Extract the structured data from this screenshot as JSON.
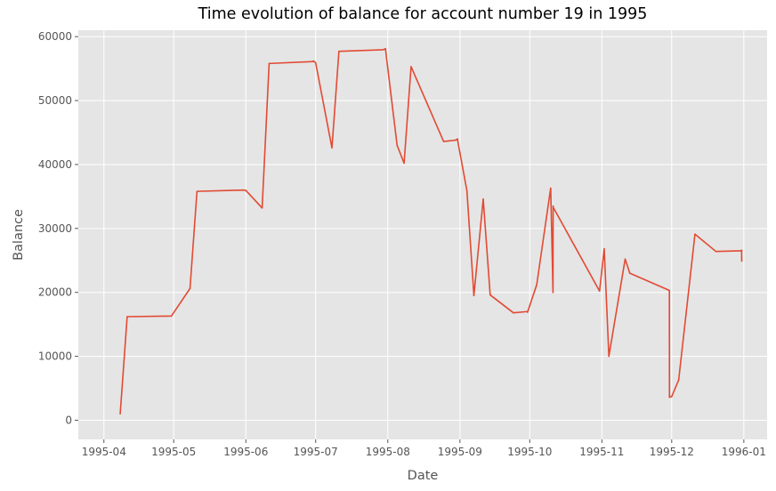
{
  "chart_data": {
    "type": "line",
    "title": "Time evolution of balance for account number 19 in 1995",
    "xlabel": "Date",
    "ylabel": "Balance",
    "xlim": [
      "1995-03-21",
      "1996-01-11"
    ],
    "ylim": [
      -3000,
      61000
    ],
    "x_ticks": [
      "1995-04",
      "1995-05",
      "1995-06",
      "1995-07",
      "1995-08",
      "1995-09",
      "1995-10",
      "1995-11",
      "1995-12",
      "1996-01"
    ],
    "y_ticks": [
      0,
      10000,
      20000,
      30000,
      40000,
      50000,
      60000
    ],
    "grid": true,
    "line_color": "#E24A33",
    "background_color": "#E5E5E5",
    "series": [
      {
        "x": [
          "1995-04-08",
          "1995-04-11",
          "1995-04-30",
          "1995-05-08",
          "1995-05-11",
          "1995-05-31",
          "1995-06-01",
          "1995-06-08",
          "1995-06-11",
          "1995-06-30",
          "1995-06-30",
          "1995-07-01",
          "1995-07-08",
          "1995-07-11",
          "1995-07-30",
          "1995-07-31",
          "1995-07-31",
          "1995-08-05",
          "1995-08-08",
          "1995-08-11",
          "1995-08-25",
          "1995-08-30",
          "1995-08-31",
          "1995-08-31",
          "1995-09-04",
          "1995-09-07",
          "1995-09-11",
          "1995-09-14",
          "1995-09-24",
          "1995-09-30",
          "1995-09-30",
          "1995-10-04",
          "1995-10-10",
          "1995-10-11",
          "1995-10-11",
          "1995-10-11",
          "1995-10-31",
          "1995-11-02",
          "1995-11-04",
          "1995-11-11",
          "1995-11-13",
          "1995-11-30",
          "1995-11-30",
          "1995-12-01",
          "1995-12-04",
          "1995-12-11",
          "1995-12-20",
          "1995-12-31",
          "1995-12-31",
          "1995-12-31"
        ],
        "y": [
          1000,
          16200,
          16300,
          20600,
          35800,
          36000,
          35950,
          33200,
          55800,
          56100,
          56200,
          55900,
          42600,
          57700,
          57950,
          58100,
          57900,
          43000,
          40200,
          55300,
          43600,
          43800,
          44000,
          43700,
          35900,
          19500,
          34600,
          19600,
          16800,
          17000,
          16900,
          21200,
          36300,
          20000,
          33500,
          33300,
          20200,
          26800,
          10000,
          25200,
          23000,
          20300,
          3600,
          3700,
          6300,
          29100,
          26400,
          26500,
          26600,
          24900
        ]
      }
    ]
  }
}
